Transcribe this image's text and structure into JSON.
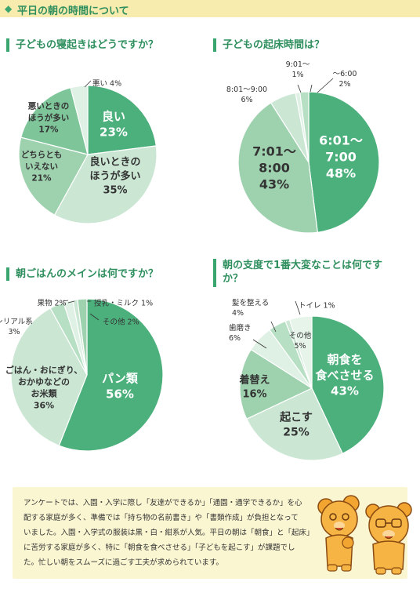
{
  "header": {
    "title": "平日の朝の時間について"
  },
  "chart_data": [
    {
      "type": "pie",
      "title": "子どもの寝起きはどうですか？",
      "slices": [
        {
          "label": "良い",
          "value": 23,
          "color": "#4cb07c"
        },
        {
          "label": "良いときのほうが多い",
          "value": 35,
          "color": "#cbe7d4"
        },
        {
          "label": "どちらともいえない",
          "value": 21,
          "color": "#9ed2af"
        },
        {
          "label": "悪いときのほうが多い",
          "value": 17,
          "color": "#7fc59a"
        },
        {
          "label": "悪い",
          "value": 4,
          "color": "#dff0e4"
        }
      ]
    },
    {
      "type": "pie",
      "title": "子どもの起床時間は？",
      "slices": [
        {
          "label": "6:01〜7:00",
          "value": 48,
          "color": "#4cb07c"
        },
        {
          "label": "7:01〜8:00",
          "value": 43,
          "color": "#9ed2af"
        },
        {
          "label": "8:01〜9:00",
          "value": 6,
          "color": "#cbe7d4"
        },
        {
          "label": "9:01〜",
          "value": 1,
          "color": "#dff0e4"
        },
        {
          "label": "〜6:00",
          "value": 2,
          "color": "#b7dfc3"
        }
      ]
    },
    {
      "type": "pie",
      "title": "朝ごはんのメインは何ですか？",
      "slices": [
        {
          "label": "パン類",
          "value": 56,
          "color": "#4cb07c"
        },
        {
          "label": "ごはん・おにぎり、おかゆなどのお米類",
          "value": 36,
          "color": "#cbe7d4"
        },
        {
          "label": "シリアル系",
          "value": 3,
          "color": "#b7dfc3"
        },
        {
          "label": "果物",
          "value": 2,
          "color": "#dff0e4"
        },
        {
          "label": "授乳・ミルク",
          "value": 1,
          "color": "#cbe7d4"
        },
        {
          "label": "その他",
          "value": 2,
          "color": "#9ed2af"
        }
      ]
    },
    {
      "type": "pie",
      "title": "朝の支度で1番大変なことは何ですか？",
      "slices": [
        {
          "label": "朝食を食べさせる",
          "value": 43,
          "color": "#4cb07c"
        },
        {
          "label": "起こす",
          "value": 25,
          "color": "#cbe7d4"
        },
        {
          "label": "着替え",
          "value": 16,
          "color": "#9ed2af"
        },
        {
          "label": "歯磨き",
          "value": 6,
          "color": "#dff0e4"
        },
        {
          "label": "髪を整える",
          "value": 4,
          "color": "#b7dfc3"
        },
        {
          "label": "トイレ",
          "value": 1,
          "color": "#cbe7d4"
        },
        {
          "label": "その他",
          "value": 5,
          "color": "#e7f4ea"
        }
      ]
    }
  ],
  "labels": {
    "c1": {
      "l0": [
        "良い",
        "23%"
      ],
      "l1": [
        "良いときの",
        "ほうが多い",
        "35%"
      ],
      "l2": [
        "どちらとも",
        "いえない",
        "21%"
      ],
      "l3": [
        "悪いときの",
        "ほうが多い",
        "17%"
      ],
      "l4": [
        "悪い 4%"
      ]
    },
    "c2": {
      "l0": [
        "6:01〜",
        "7:00",
        "48%"
      ],
      "l1": [
        "7:01〜",
        "8:00",
        "43%"
      ],
      "l2": [
        "8:01〜9:00",
        "6%"
      ],
      "l3": [
        "9:01〜",
        "1%"
      ],
      "l4": [
        "〜6:00",
        "2%"
      ]
    },
    "c3": {
      "l0": [
        "パン類",
        "56%"
      ],
      "l1": [
        "ごはん・おにぎり、",
        "おかゆなどの",
        "お米類",
        "36%"
      ],
      "l2": [
        "シリアル系",
        "3%"
      ],
      "l3": [
        "果物 2%"
      ],
      "l4": [
        "授乳・ミルク 1%"
      ],
      "l5": [
        "その他 2%"
      ]
    },
    "c4": {
      "l0": [
        "朝食を",
        "食べさせる",
        "43%"
      ],
      "l1": [
        "起こす",
        "25%"
      ],
      "l2": [
        "着替え",
        "16%"
      ],
      "l3": [
        "歯磨き",
        "6%"
      ],
      "l4": [
        "髪を整える",
        "4%"
      ],
      "l5": [
        "トイレ 1%"
      ],
      "l6": [
        "その他",
        "5%"
      ]
    }
  },
  "note": {
    "lines": [
      "アンケートでは、入園・入学に際し「友達ができるか」「通園・通学できるか」を心",
      "配する家庭が多く、準備では「持ち物の名前書き」や「書類作成」が負担となって",
      "いました。入園・入学式の服装は黒・白・紺系が人気。平日の朝は「朝食」と「起床」",
      "に苦労する家庭が多く、特に「朝食を食べさせる」「子どもを起こす」が課題でし",
      "た。忙しい朝をスムーズに過ごす工夫が求められています。"
    ]
  }
}
